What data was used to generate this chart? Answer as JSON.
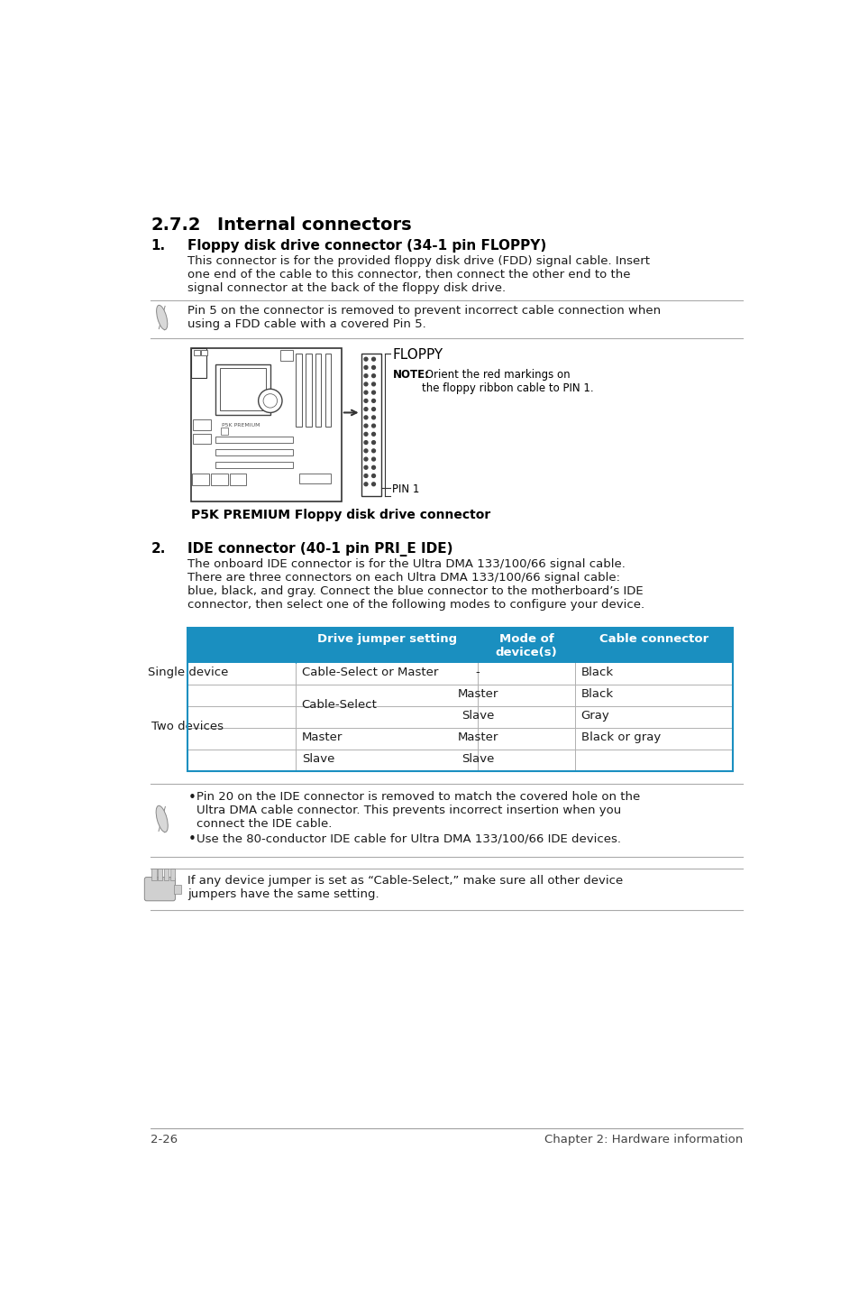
{
  "bg_color": "#ffffff",
  "section_title_num": "2.7.2",
  "section_title_text": "Internal connectors",
  "item1_num": "1.",
  "item1_title": "Floppy disk drive connector (34-1 pin FLOPPY)",
  "item1_body": "This connector is for the provided floppy disk drive (FDD) signal cable. Insert\none end of the cable to this connector, then connect the other end to the\nsignal connector at the back of the floppy disk drive.",
  "note1_text": "Pin 5 on the connector is removed to prevent incorrect cable connection when\nusing a FDD cable with a covered Pin 5.",
  "floppy_label": "FLOPPY",
  "floppy_note_bold": "NOTE:",
  "floppy_note_rest": " Orient the red markings on\nthe floppy ribbon cable to PIN 1.",
  "floppy_pin1": "PIN 1",
  "floppy_caption": "P5K PREMIUM Floppy disk drive connector",
  "item2_num": "2.",
  "item2_title": "IDE connector (40-1 pin PRI_E IDE)",
  "item2_body": "The onboard IDE connector is for the Ultra DMA 133/100/66 signal cable.\nThere are three connectors on each Ultra DMA 133/100/66 signal cable:\nblue, black, and gray. Connect the blue connector to the motherboard’s IDE\nconnector, then select one of the following modes to configure your device.",
  "table_header_bg": "#1a8fc0",
  "table_border_color": "#1a8fc0",
  "table_inner_border_color": "#b0b0b0",
  "table_col1_header": "Drive jumper setting",
  "table_col2_header": "Mode of\ndevice(s)",
  "table_col3_header": "Cable connector",
  "note2_bullet1": "Pin 20 on the IDE connector is removed to match the covered hole on the\nUltra DMA cable connector. This prevents incorrect insertion when you\nconnect the IDE cable.",
  "note2_bullet2": "Use the 80-conductor IDE cable for Ultra DMA 133/100/66 IDE devices.",
  "note3_text": "If any device jumper is set as “Cable-Select,” make sure all other device\njumpers have the same setting.",
  "footer_left": "2-26",
  "footer_right": "Chapter 2: Hardware information",
  "body_color": "#1a1a1a",
  "line_color": "#aaaaaa",
  "icon_color": "#aaaaaa"
}
